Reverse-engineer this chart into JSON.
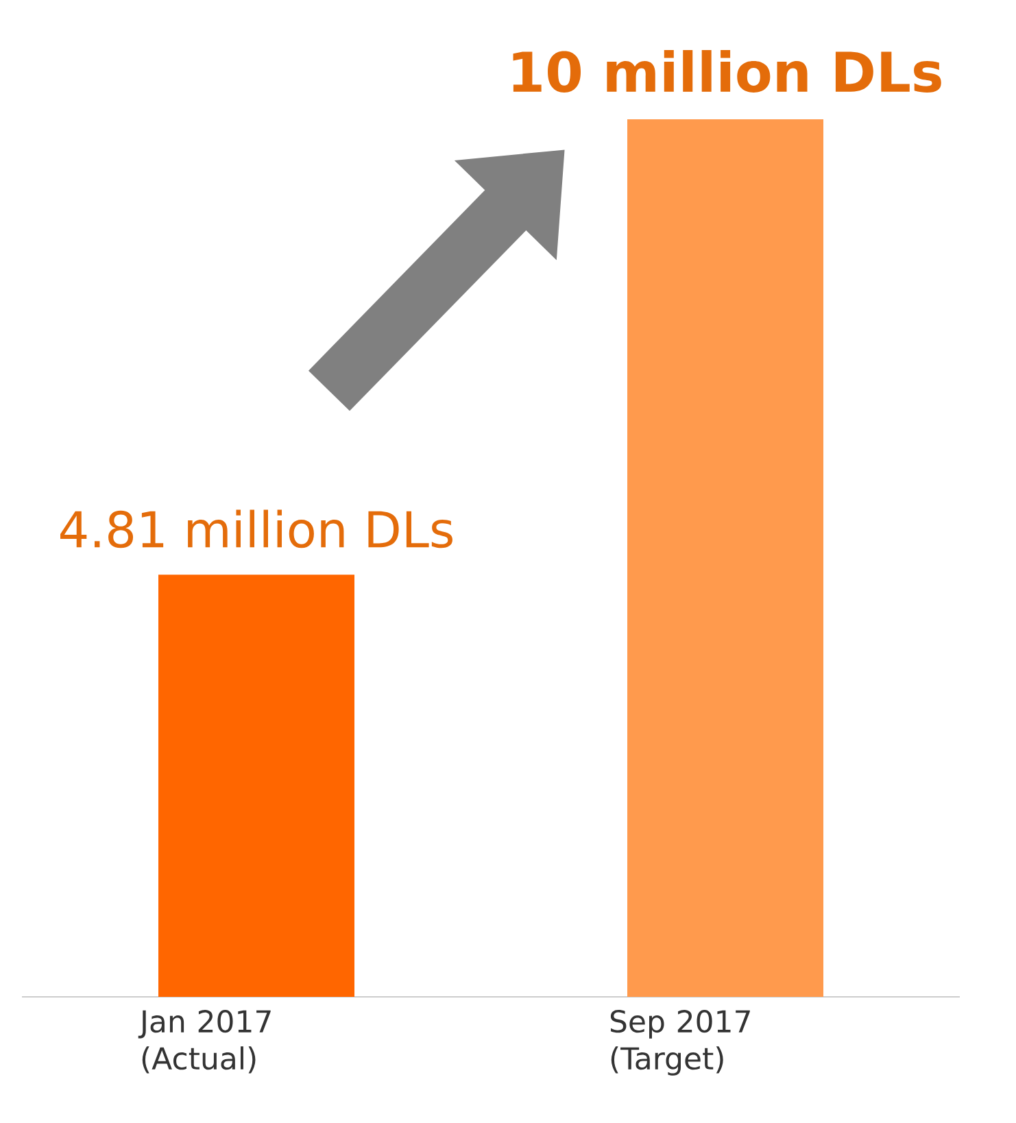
{
  "chart_data": {
    "type": "bar",
    "categories": [
      "Jan 2017 (Actual)",
      "Sep 2017 (Target)"
    ],
    "values": [
      4.81,
      10
    ],
    "colors": [
      "#ff6600",
      "#ff9a4d"
    ],
    "value_labels": [
      "4.81 million DLs",
      "10 million DLs"
    ],
    "ylim": [
      0,
      10
    ]
  }
}
